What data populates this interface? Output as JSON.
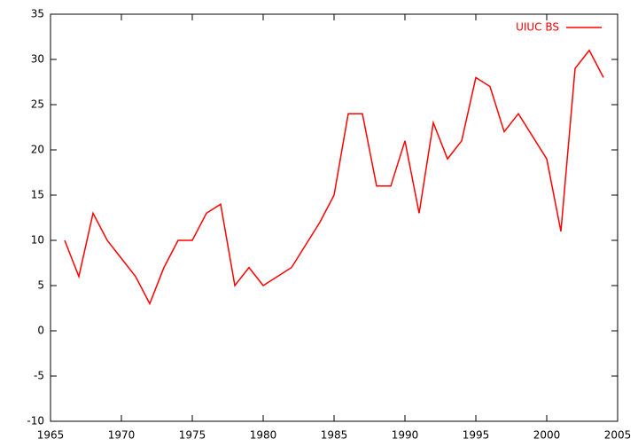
{
  "chart_data": {
    "type": "line",
    "x": [
      1966,
      1967,
      1968,
      1969,
      1971,
      1972,
      1973,
      1974,
      1975,
      1976,
      1977,
      1978,
      1979,
      1980,
      1982,
      1984,
      1985,
      1986,
      1987,
      1988,
      1989,
      1990,
      1991,
      1992,
      1993,
      1994,
      1995,
      1996,
      1997,
      1998,
      2000,
      2001,
      2002,
      2003,
      2004
    ],
    "series": [
      {
        "name": "UIUC BS",
        "color": "#ff0000",
        "values": [
          10,
          6,
          13,
          10,
          6,
          3,
          7,
          10,
          10,
          13,
          14,
          5,
          7,
          5,
          7,
          12,
          15,
          24,
          24,
          16,
          16,
          21,
          13,
          23,
          19,
          21,
          28,
          27,
          22,
          24,
          19,
          11,
          29,
          31,
          28
        ]
      }
    ],
    "xlim": [
      1965,
      2005
    ],
    "xticks": [
      1965,
      1970,
      1975,
      1980,
      1985,
      1990,
      1995,
      2000,
      2005
    ],
    "ylim": [
      -10,
      35
    ],
    "yticks": [
      -10,
      -5,
      0,
      5,
      10,
      15,
      20,
      25,
      30,
      35
    ],
    "grid": false,
    "legend": "top-right"
  }
}
